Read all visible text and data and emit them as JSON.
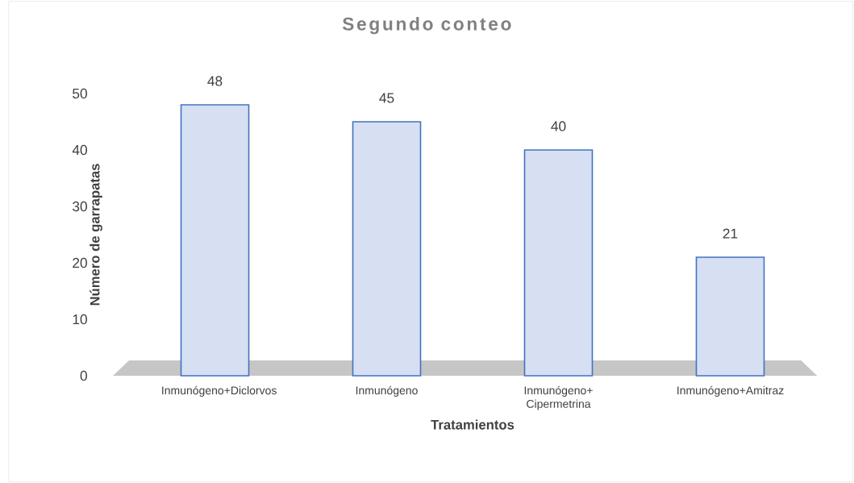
{
  "chart_data": {
    "type": "bar",
    "title": "Segundo conteo",
    "xlabel": "Tratamientos",
    "ylabel": "Número de garrapatas",
    "categories": [
      "Inmunógeno+Diclorvos",
      "Inmunógeno",
      "Inmunógeno+ Cipermetrina",
      "Inmunógeno+Amitraz"
    ],
    "values": [
      48,
      45,
      40,
      21
    ],
    "color": "#4472c4",
    "ylim": [
      0,
      50
    ],
    "yticks": [
      0,
      10,
      20,
      30,
      40,
      50
    ],
    "data_labels": true,
    "grid": false
  }
}
